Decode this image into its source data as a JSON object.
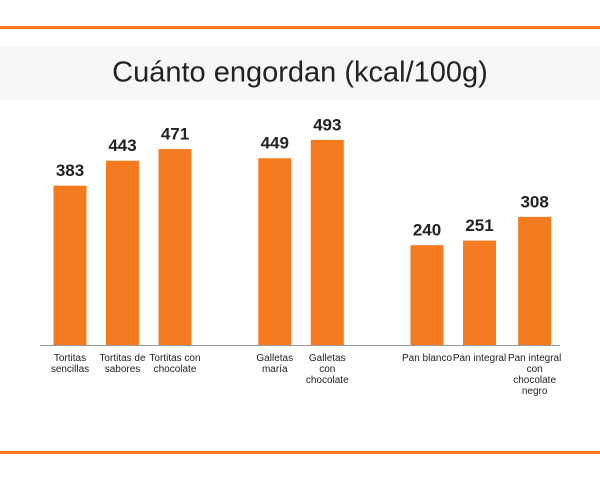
{
  "chart_data": {
    "type": "bar",
    "title": "Cuánto engordan (kcal/100g)",
    "categories": [
      "Tortitas sencillas",
      "Tortitas de sabores",
      "Tortitas con chocolate",
      "Galletas maría",
      "Galletas con chocolate",
      "Pan blanco",
      "Pan integral",
      "Pan integral con chocolate negro"
    ],
    "values": [
      383,
      443,
      471,
      449,
      493,
      240,
      251,
      308
    ],
    "color": "#f47b20"
  }
}
